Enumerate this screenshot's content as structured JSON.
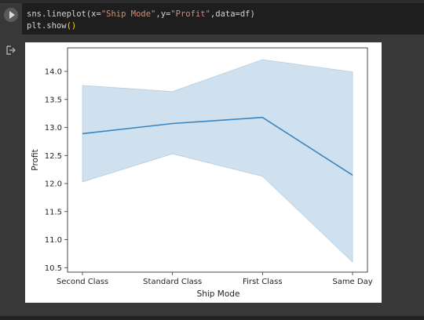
{
  "code": {
    "line1_parts": [
      "sns.lineplot(x=",
      "\"Ship Mode\"",
      ",y=",
      "\"Profit\"",
      ",data=df)"
    ],
    "line2_parts": [
      "plt.show",
      "()"
    ]
  },
  "icons": {
    "run": "play-icon",
    "output": "output-arrow-icon"
  },
  "colors": {
    "line": "#3a85c0",
    "band": "#c7dceb",
    "band_edge": "#b5cfe3"
  },
  "chart_data": {
    "type": "line",
    "categories": [
      "Second Class",
      "Standard Class",
      "First Class",
      "Same Day"
    ],
    "values": [
      12.89,
      13.07,
      13.18,
      12.15
    ],
    "ci_upper": [
      13.75,
      13.64,
      14.21,
      13.99
    ],
    "ci_lower": [
      12.03,
      12.53,
      12.13,
      10.6
    ],
    "xlabel": "Ship Mode",
    "ylabel": "Profit",
    "ylim": [
      10.42,
      14.42
    ],
    "yticks": [
      "10.5",
      "11.0",
      "11.5",
      "12.0",
      "12.5",
      "13.0",
      "13.5",
      "14.0"
    ],
    "ytick_values": [
      10.5,
      11.0,
      11.5,
      12.0,
      12.5,
      13.0,
      13.5,
      14.0
    ],
    "grid": false,
    "legend": false
  }
}
